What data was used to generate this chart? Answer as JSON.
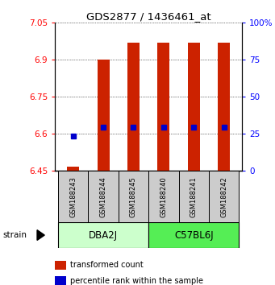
{
  "title": "GDS2877 / 1436461_at",
  "samples": [
    "GSM188243",
    "GSM188244",
    "GSM188245",
    "GSM188240",
    "GSM188241",
    "GSM188242"
  ],
  "bar_values": [
    6.468,
    6.9,
    6.97,
    6.97,
    6.97,
    6.97
  ],
  "bar_base": 6.45,
  "blue_values": [
    6.593,
    6.627,
    6.627,
    6.627,
    6.627,
    6.627
  ],
  "ylim_left": [
    6.45,
    7.05
  ],
  "ylim_right": [
    0,
    100
  ],
  "yticks_left": [
    6.45,
    6.6,
    6.75,
    6.9,
    7.05
  ],
  "yticks_right": [
    0,
    25,
    50,
    75,
    100
  ],
  "ytick_labels_left": [
    "6.45",
    "6.6",
    "6.75",
    "6.9",
    "7.05"
  ],
  "ytick_labels_right": [
    "0",
    "25",
    "50",
    "75",
    "100%"
  ],
  "groups": [
    {
      "label": "DBA2J",
      "samples": [
        0,
        1,
        2
      ],
      "color": "#ccffcc"
    },
    {
      "label": "C57BL6J",
      "samples": [
        3,
        4,
        5
      ],
      "color": "#55ee55"
    }
  ],
  "bar_color": "#cc2200",
  "blue_color": "#0000cc",
  "background_color": "#ffffff",
  "sample_bg_color": "#cccccc",
  "strain_label": "strain",
  "legend_items": [
    {
      "color": "#cc2200",
      "label": "transformed count"
    },
    {
      "color": "#0000cc",
      "label": "percentile rank within the sample"
    }
  ]
}
